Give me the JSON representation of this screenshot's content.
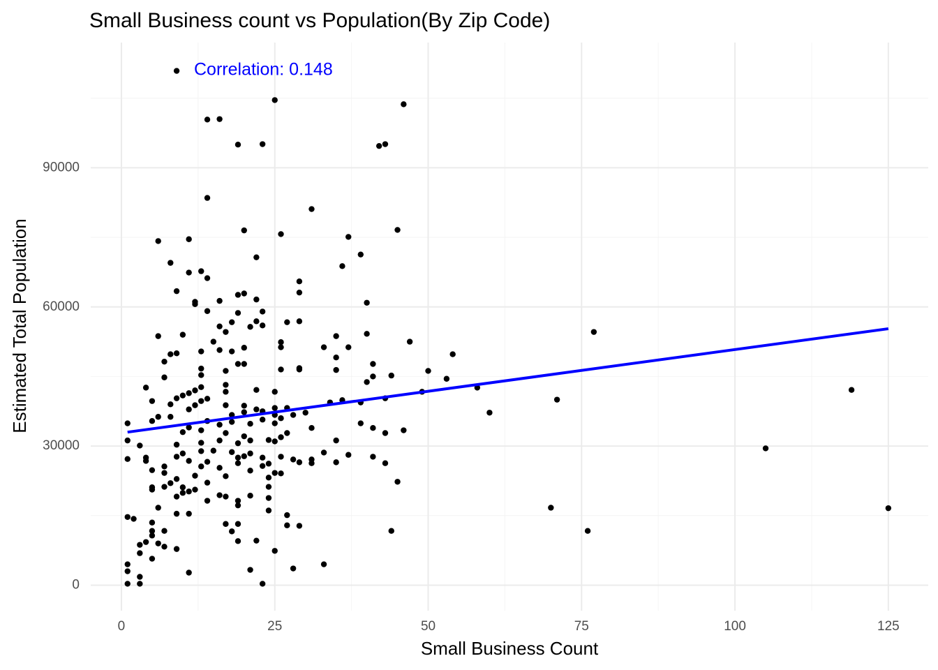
{
  "chart_data": {
    "type": "scatter",
    "title": "Small Business count vs Population(By Zip Code)",
    "x_label": "Small Business Count",
    "y_label": "Estimated Total Population",
    "annotation": "Correlation: 0.148",
    "annotation_color": "blue",
    "xlim": [
      -5,
      131.5
    ],
    "ylim": [
      -5500,
      117000
    ],
    "xticks": [
      0,
      25,
      50,
      75,
      100,
      125
    ],
    "yticks": [
      0,
      30000,
      60000,
      90000
    ],
    "x_minor_grid": [
      12.5,
      37.5,
      62.5,
      87.5,
      112.5
    ],
    "y_minor_grid": [
      15000,
      45000,
      75000,
      105000
    ],
    "grid": true,
    "point_color": "#000000",
    "trend": {
      "x": [
        1,
        125
      ],
      "y": [
        33000,
        55300
      ],
      "color": "blue"
    },
    "x": [
      9,
      25,
      46,
      14,
      16,
      19,
      23,
      42,
      43,
      14,
      31,
      6,
      11,
      20,
      26,
      37,
      45,
      8,
      22,
      39,
      11,
      13,
      14,
      36,
      29,
      9,
      29,
      19,
      20,
      22,
      12,
      16,
      40,
      12,
      14,
      19,
      23,
      6,
      10,
      18,
      22,
      23,
      21,
      16,
      27,
      29,
      17,
      35,
      40,
      77,
      15,
      26,
      47,
      26,
      33,
      20,
      37,
      16,
      13,
      8,
      9,
      18,
      35,
      54,
      7,
      19,
      20,
      41,
      29,
      29,
      26,
      35,
      13,
      17,
      50,
      7,
      13,
      41,
      44,
      53,
      40,
      17,
      13,
      4,
      12,
      22,
      25,
      58,
      49,
      119,
      11,
      10,
      17,
      43,
      9,
      71,
      36,
      5,
      13,
      14,
      12,
      8,
      17,
      20,
      39,
      34,
      27,
      25,
      22,
      20,
      23,
      11,
      60,
      30,
      28,
      25,
      18,
      8,
      6,
      5,
      1,
      14,
      16,
      18,
      21,
      23,
      26,
      25,
      31,
      41,
      39,
      46,
      43,
      11,
      13,
      10,
      27,
      17,
      20,
      26,
      24,
      25,
      35,
      16,
      1,
      13,
      9,
      21,
      19,
      3,
      15,
      13,
      10,
      18,
      21,
      33,
      37,
      105,
      9,
      19,
      20,
      23,
      26,
      31,
      41,
      28,
      1,
      4,
      4,
      11,
      14,
      29,
      31,
      43,
      35,
      24,
      19,
      16,
      7,
      13,
      23,
      5,
      7,
      26,
      25,
      21,
      24,
      12,
      17,
      9,
      8,
      14,
      45,
      5,
      7,
      10,
      24,
      5,
      11,
      12,
      10,
      9,
      16,
      17,
      21,
      14,
      19,
      24,
      19,
      6,
      24,
      70,
      125,
      9,
      11,
      27,
      1,
      2,
      17,
      19,
      5,
      27,
      29,
      5,
      7,
      18,
      44,
      76,
      5,
      22,
      19,
      4,
      6,
      3,
      7,
      9,
      25,
      3,
      5,
      1,
      33,
      11,
      21,
      28,
      1,
      3,
      3,
      1,
      23
    ],
    "values": [
      110900,
      104600,
      103700,
      100400,
      100500,
      95000,
      95100,
      94700,
      95100,
      83500,
      81100,
      74200,
      74600,
      76500,
      75700,
      75100,
      76600,
      69500,
      70700,
      71300,
      67400,
      67700,
      66200,
      68800,
      65500,
      63400,
      63100,
      62600,
      62900,
      61600,
      61100,
      61300,
      60900,
      60600,
      59100,
      58700,
      59000,
      53700,
      54000,
      56700,
      56900,
      56000,
      55700,
      55800,
      56700,
      56900,
      54600,
      53700,
      54200,
      54600,
      52500,
      52400,
      52500,
      51300,
      51300,
      51200,
      51300,
      50700,
      50400,
      49800,
      50000,
      50400,
      49100,
      49800,
      48200,
      47700,
      47700,
      47700,
      46800,
      46500,
      46500,
      46400,
      46700,
      46200,
      46200,
      44800,
      45300,
      45000,
      45200,
      44500,
      43800,
      43200,
      42700,
      42600,
      42000,
      42100,
      41700,
      42600,
      41700,
      42100,
      41400,
      40900,
      41700,
      40300,
      40300,
      40000,
      39900,
      39700,
      39700,
      40200,
      38800,
      39000,
      38800,
      38700,
      39400,
      39400,
      38200,
      38200,
      37900,
      37300,
      37500,
      37900,
      37200,
      37200,
      36700,
      36700,
      36700,
      36300,
      36300,
      35400,
      34900,
      35400,
      34600,
      35200,
      34800,
      35700,
      36000,
      34900,
      33900,
      33900,
      34900,
      33400,
      32800,
      34000,
      33400,
      33000,
      32800,
      32800,
      32100,
      31900,
      31300,
      31000,
      31200,
      31200,
      31200,
      30700,
      30300,
      31200,
      30600,
      30100,
      29000,
      28900,
      28400,
      28700,
      28400,
      28600,
      28100,
      29500,
      27700,
      27500,
      27800,
      27500,
      27700,
      27100,
      27700,
      27100,
      27200,
      27500,
      26800,
      26800,
      26600,
      26500,
      26300,
      26300,
      26500,
      26200,
      26300,
      25300,
      25600,
      25600,
      25700,
      24800,
      24200,
      24100,
      24200,
      24700,
      23200,
      23600,
      23500,
      22900,
      22000,
      22100,
      22300,
      21100,
      21200,
      21100,
      21200,
      20600,
      20200,
      20600,
      19900,
      19100,
      19400,
      19100,
      19300,
      18200,
      18200,
      18800,
      17200,
      16700,
      16100,
      16700,
      16600,
      15400,
      15400,
      15100,
      14700,
      14300,
      13200,
      13200,
      13500,
      12900,
      12800,
      11700,
      11700,
      11600,
      11700,
      11700,
      10700,
      9600,
      9500,
      9300,
      9000,
      8700,
      8300,
      7800,
      7400,
      6900,
      5700,
      4500,
      4500,
      2700,
      3300,
      3600,
      3000,
      1800,
      300,
      300,
      300
    ]
  }
}
